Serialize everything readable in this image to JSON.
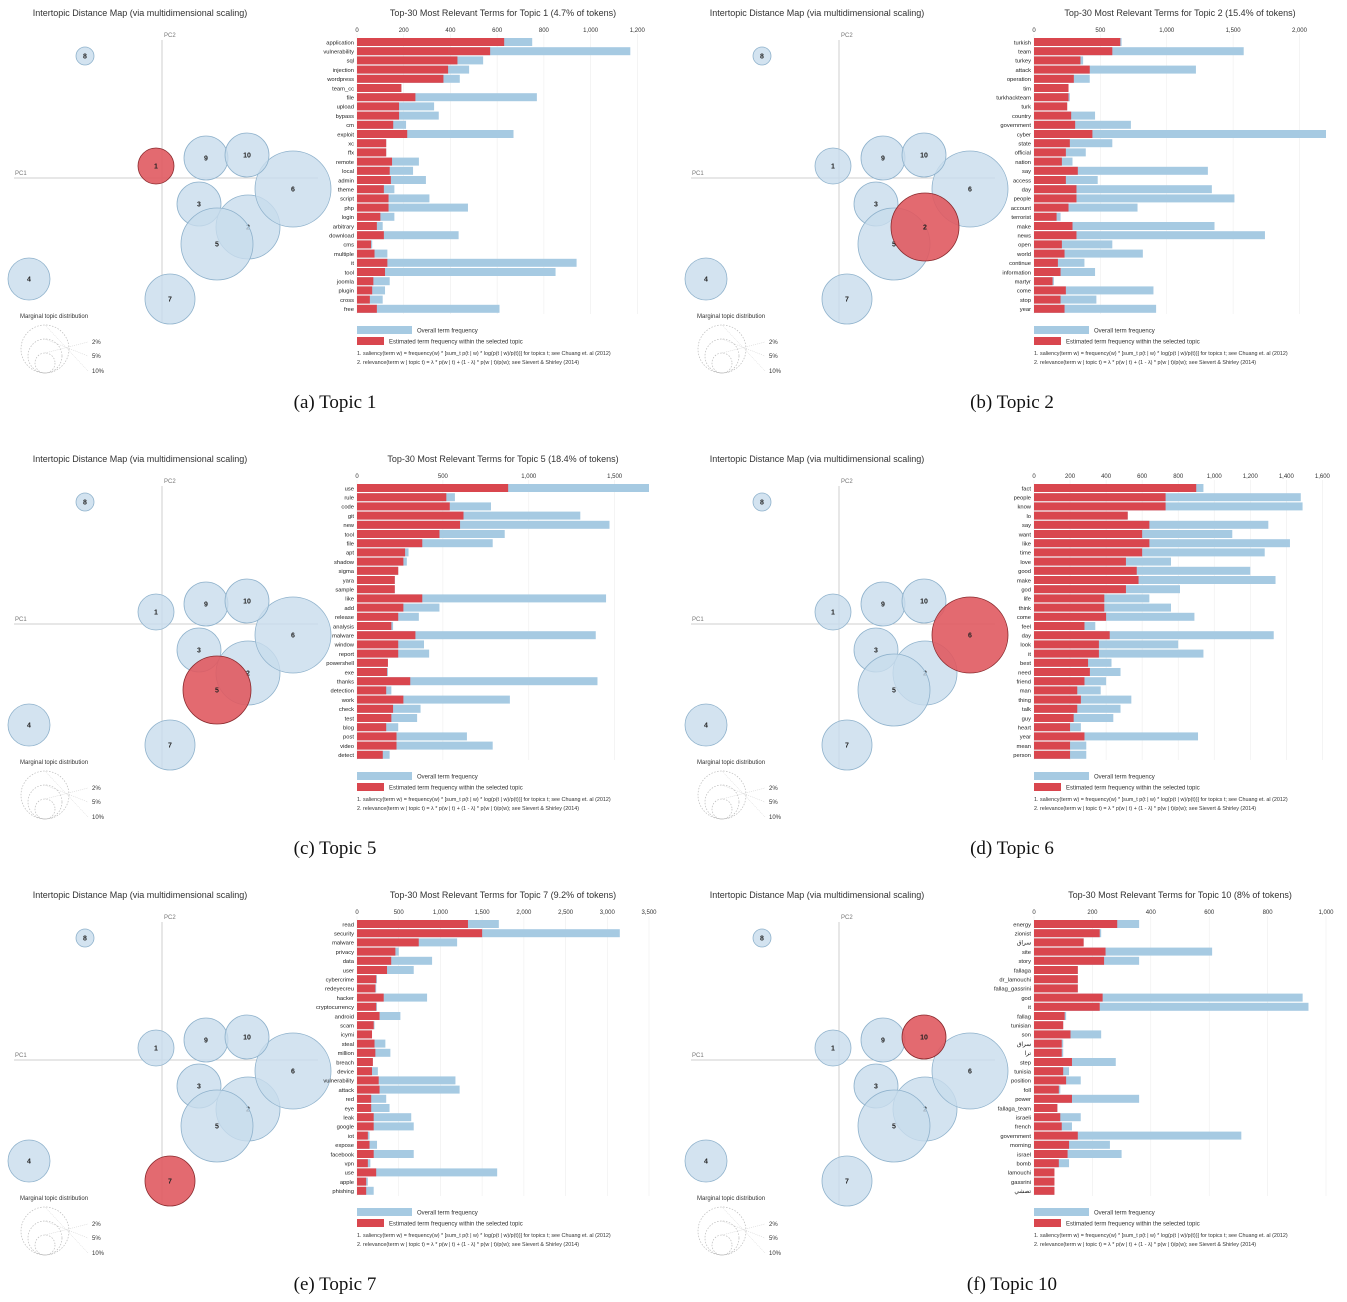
{
  "figure": {
    "map_title": "Intertopic Distance Map (via multidimensional scaling)",
    "pc1": "PC1",
    "pc2": "PC2",
    "marginal_title": "Marginal topic distribution",
    "marginal_levels": [
      "2%",
      "5%",
      "10%"
    ],
    "legend_overall": "Overall term frequency",
    "legend_estimated": "Estimated term frequency within the selected topic",
    "footnote1": "1. saliency(term w) = frequency(w) * [sum_t p(t | w) * log(p(t | w)/p(t))] for topics t; see Chuang et. al (2012)",
    "footnote2": "2. relevance(term w | topic t) = λ * p(w | t) + (1 - λ) * p(w | t)/p(w); see Sievert & Shirley (2014)",
    "colors": {
      "overall": "#a6cae2",
      "estimated": "#d9464e",
      "circle": "#c8dcec",
      "circle_stroke": "#8fb2cc",
      "selected": "#e05a60"
    }
  },
  "chart_data": [
    {
      "type": "bar",
      "caption": "(a) Topic 1",
      "selected_topic": 1,
      "title": "Top-30 Most Relevant Terms for Topic 1 (4.7% of tokens)",
      "xlim": [
        0,
        1250
      ],
      "ticks": [
        0,
        200,
        400,
        600,
        800,
        1000,
        1200
      ],
      "tick_labels": [
        "0",
        "200",
        "400",
        "600",
        "800",
        "1,000",
        "1,200"
      ],
      "terms": [
        "application",
        "vulnerability",
        "sql",
        "injection",
        "wordpress",
        "team_cc",
        "file",
        "upload",
        "bypass",
        "cm",
        "exploit",
        "xc",
        "ffx",
        "remote",
        "local",
        "admin",
        "theme",
        "script",
        "php",
        "login",
        "arbitrary",
        "download",
        "cms",
        "multiple",
        "it",
        "tool",
        "joomla",
        "plugin",
        "cross",
        "free"
      ],
      "overall": [
        750,
        1170,
        540,
        480,
        440,
        190,
        770,
        330,
        350,
        210,
        670,
        125,
        125,
        265,
        240,
        295,
        160,
        310,
        475,
        160,
        110,
        435,
        65,
        130,
        940,
        850,
        140,
        120,
        110,
        610
      ],
      "estimated": [
        630,
        570,
        430,
        390,
        370,
        190,
        250,
        180,
        180,
        155,
        215,
        125,
        125,
        150,
        140,
        145,
        115,
        135,
        135,
        100,
        85,
        115,
        60,
        75,
        130,
        120,
        70,
        65,
        55,
        85
      ]
    },
    {
      "type": "bar",
      "caption": "(b) Topic 2",
      "selected_topic": 2,
      "title": "Top-30 Most Relevant Terms for Topic 2 (15.4% of tokens)",
      "xlim": [
        0,
        2200
      ],
      "ticks": [
        0,
        500,
        1000,
        1500,
        2000
      ],
      "tick_labels": [
        "0",
        "500",
        "1,000",
        "1,500",
        "2,000"
      ],
      "terms": [
        "turkish",
        "team",
        "turkey",
        "attack",
        "operation",
        "tim",
        "turkhackteam",
        "turk",
        "country",
        "government",
        "cyber",
        "state",
        "official",
        "nation",
        "say",
        "access",
        "day",
        "people",
        "account",
        "terrorist",
        "make",
        "news",
        "open",
        "world",
        "continue",
        "information",
        "martyr",
        "come",
        "stop",
        "year"
      ],
      "overall": [
        660,
        1580,
        370,
        1220,
        420,
        260,
        270,
        250,
        460,
        730,
        2200,
        590,
        390,
        290,
        1310,
        480,
        1340,
        1510,
        780,
        200,
        1360,
        1740,
        590,
        820,
        380,
        460,
        150,
        900,
        470,
        920
      ],
      "estimated": [
        650,
        590,
        350,
        420,
        300,
        260,
        260,
        250,
        280,
        310,
        440,
        270,
        240,
        210,
        330,
        240,
        320,
        320,
        260,
        170,
        290,
        320,
        210,
        230,
        180,
        200,
        140,
        240,
        200,
        230
      ]
    },
    {
      "type": "bar",
      "caption": "(c) Topic 5",
      "selected_topic": 5,
      "title": "Top-30 Most Relevant Terms for Topic 5 (18.4% of tokens)",
      "xlim": [
        0,
        1700
      ],
      "ticks": [
        0,
        500,
        1000,
        1500
      ],
      "tick_labels": [
        "0",
        "500",
        "1,000",
        "1,500"
      ],
      "terms": [
        "use",
        "rule",
        "code",
        "git",
        "new",
        "tool",
        "file",
        "apt",
        "shadow",
        "sigma",
        "yara",
        "sample",
        "like",
        "add",
        "release",
        "analysis",
        "malware",
        "window",
        "report",
        "powershell",
        "exe",
        "thanks",
        "detection",
        "work",
        "check",
        "test",
        "blog",
        "post",
        "video",
        "detect"
      ],
      "overall": [
        1700,
        570,
        780,
        1300,
        1470,
        860,
        790,
        300,
        290,
        240,
        220,
        220,
        1450,
        480,
        360,
        210,
        1390,
        390,
        420,
        180,
        180,
        1400,
        200,
        890,
        370,
        350,
        240,
        640,
        790,
        190
      ],
      "estimated": [
        880,
        520,
        540,
        620,
        600,
        480,
        380,
        280,
        270,
        240,
        220,
        220,
        380,
        270,
        240,
        200,
        340,
        240,
        240,
        180,
        175,
        310,
        170,
        270,
        210,
        200,
        170,
        230,
        230,
        150
      ]
    },
    {
      "type": "bar",
      "caption": "(d) Topic 6",
      "selected_topic": 6,
      "title": "",
      "xlim": [
        0,
        1620
      ],
      "ticks": [
        0,
        200,
        400,
        600,
        800,
        1000,
        1200,
        1400,
        1600
      ],
      "tick_labels": [
        "0",
        "200",
        "400",
        "600",
        "800",
        "1,000",
        "1,200",
        "1,400",
        "1,600"
      ],
      "terms": [
        "fact",
        "people",
        "know",
        "lo",
        "say",
        "want",
        "like",
        "time",
        "love",
        "good",
        "make",
        "god",
        "life",
        "think",
        "come",
        "feel",
        "day",
        "look",
        "it",
        "best",
        "need",
        "friend",
        "man",
        "thing",
        "talk",
        "guy",
        "heart",
        "year",
        "mean",
        "person"
      ],
      "overall": [
        940,
        1480,
        1490,
        520,
        1300,
        1100,
        1420,
        1280,
        760,
        1200,
        1340,
        810,
        640,
        760,
        890,
        340,
        1330,
        800,
        940,
        430,
        480,
        400,
        370,
        540,
        480,
        440,
        260,
        910,
        290,
        290
      ],
      "estimated": [
        900,
        730,
        730,
        520,
        640,
        600,
        640,
        600,
        510,
        570,
        580,
        510,
        390,
        390,
        400,
        280,
        420,
        360,
        360,
        300,
        310,
        280,
        240,
        260,
        240,
        220,
        200,
        280,
        200,
        200
      ]
    },
    {
      "type": "bar",
      "caption": "(e) Topic 7",
      "selected_topic": 7,
      "title": "Top-30 Most Relevant Terms for Topic 7 (9.2% of tokens)",
      "xlim": [
        0,
        3500
      ],
      "ticks": [
        0,
        500,
        1000,
        1500,
        2000,
        2500,
        3000,
        3500
      ],
      "tick_labels": [
        "0",
        "500",
        "1,000",
        "1,500",
        "2,000",
        "2,500",
        "3,000",
        "3,500"
      ],
      "terms": [
        "read",
        "security",
        "malware",
        "privacy",
        "data",
        "user",
        "cybercrime",
        "redeyecreu",
        "hacker",
        "cryptocurrency",
        "android",
        "scam",
        "icymi",
        "steal",
        "million",
        "breach",
        "device",
        "vulnerability",
        "attack",
        "red",
        "eye",
        "leak",
        "google",
        "iot",
        "expose",
        "facebook",
        "vpn",
        "use",
        "apple",
        "phishing"
      ],
      "overall": [
        1700,
        3150,
        1200,
        500,
        900,
        680,
        240,
        230,
        840,
        240,
        520,
        210,
        180,
        340,
        400,
        190,
        250,
        1180,
        1230,
        350,
        390,
        650,
        680,
        150,
        240,
        680,
        160,
        1680,
        130,
        200
      ],
      "estimated": [
        1330,
        1500,
        740,
        460,
        410,
        360,
        230,
        220,
        320,
        230,
        270,
        200,
        180,
        210,
        220,
        190,
        180,
        260,
        270,
        170,
        170,
        200,
        200,
        130,
        150,
        200,
        130,
        230,
        110,
        110
      ]
    },
    {
      "type": "bar",
      "caption": "(f) Topic 10",
      "selected_topic": 10,
      "title": "Top-30 Most Relevant Terms for Topic 10 (8% of tokens)",
      "xlim": [
        0,
        1000
      ],
      "ticks": [
        0,
        200,
        400,
        600,
        800,
        1000
      ],
      "tick_labels": [
        "0",
        "200",
        "400",
        "600",
        "800",
        "1,000"
      ],
      "terms": [
        "energy",
        "zionist",
        "ﺳﺮاق",
        "site",
        "story",
        "fallaga",
        "dr_lamouchi",
        "fallag_gassrini",
        "god",
        "it",
        "fallag",
        "tunisian",
        "son",
        "ﺳﺮاق",
        "ﺗﺮا",
        "step",
        "tunisia",
        "position",
        "foll",
        "power",
        "fallaga_team",
        "israeli",
        "french",
        "government",
        "morning",
        "israel",
        "bomb",
        "lamouchi",
        "gassrini",
        "ﺗﺼﺸﻲ"
      ],
      "overall": [
        360,
        230,
        170,
        610,
        360,
        150,
        150,
        150,
        920,
        940,
        110,
        100,
        230,
        100,
        100,
        280,
        120,
        160,
        90,
        360,
        80,
        160,
        130,
        710,
        260,
        300,
        120,
        70,
        70,
        70
      ],
      "estimated": [
        285,
        225,
        170,
        245,
        240,
        150,
        150,
        150,
        235,
        225,
        105,
        100,
        125,
        95,
        95,
        130,
        100,
        110,
        85,
        130,
        80,
        90,
        95,
        150,
        120,
        115,
        85,
        70,
        70,
        70
      ]
    }
  ]
}
